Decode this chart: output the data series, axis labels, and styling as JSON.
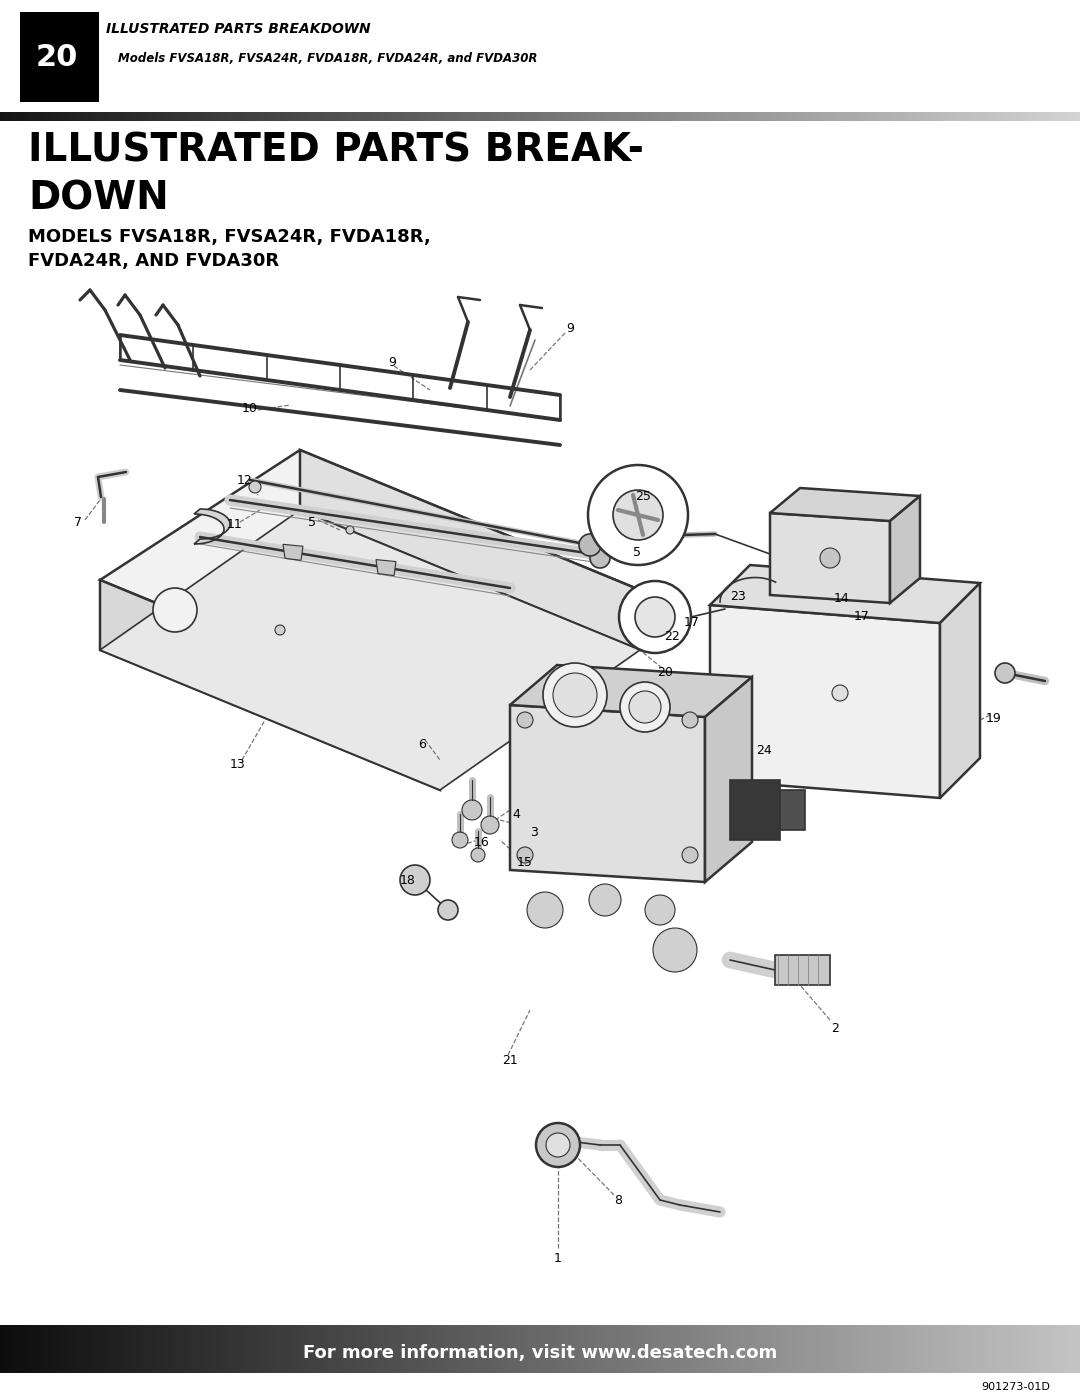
{
  "page_number": "20",
  "header_title": "ILLUSTRATED PARTS BREAKDOWN",
  "header_subtitle": "Models FVSA18R, FVSA24R, FVDA18R, FVDA24R, and FVDA30R",
  "main_title_line1": "ILLUSTRATED PARTS BREAK-",
  "main_title_line2": "DOWN",
  "subtitle_line1": "MODELS FVSA18R, FVSA24R, FVDA18R,",
  "subtitle_line2": "FVDA24R, AND FVDA30R",
  "footer_text": "For more information, visit www.desatech.com",
  "footer_code": "901273-01D",
  "bg_color": "#ffffff",
  "lc": "#333333",
  "lc_light": "#888888",
  "fill_light": "#f0f0f0",
  "fill_mid": "#dcdcdc",
  "fill_dark": "#c8c8c8"
}
